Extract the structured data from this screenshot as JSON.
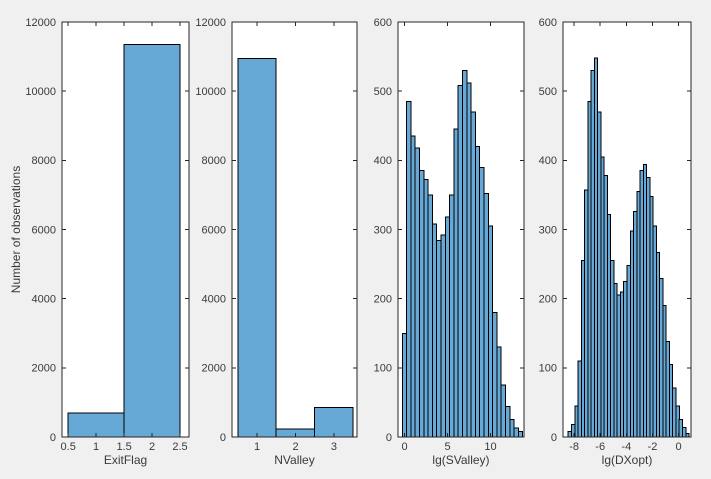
{
  "figure": {
    "background_color": "#f0f0f0",
    "axes_background_color": "#ffffff",
    "axis_color": "#262626",
    "tick_label_color": "#3a3a3a",
    "bar_fill_color": "#66a9d6",
    "bar_edge_color": "#000000",
    "shared_ylabel": "Number of observations"
  },
  "chart_data": [
    {
      "type": "bar",
      "title": "",
      "xlabel": "ExitFlag",
      "ylabel": "Number of observations",
      "xlim": [
        0.39,
        2.66
      ],
      "ylim": [
        0,
        12000
      ],
      "grid": false,
      "legend": null,
      "xticks": [
        0.5,
        1,
        1.5,
        2,
        2.5
      ],
      "xtick_labels": [
        "0.5",
        "1",
        "1.5",
        "2",
        "2.5"
      ],
      "yticks": [
        0,
        2000,
        4000,
        6000,
        8000,
        10000,
        12000
      ],
      "ytick_labels": [
        "0",
        "2000",
        "4000",
        "6000",
        "8000",
        "10000",
        "12000"
      ],
      "bin_start": 0.5,
      "bin_width": 1,
      "counts": [
        700,
        11350
      ]
    },
    {
      "type": "bar",
      "title": "",
      "xlabel": "NValley",
      "ylabel": "",
      "xlim": [
        0.35,
        3.6
      ],
      "ylim": [
        0,
        12000
      ],
      "grid": false,
      "legend": null,
      "xticks": [
        1,
        2,
        3
      ],
      "xtick_labels": [
        "1",
        "2",
        "3"
      ],
      "yticks": [
        0,
        2000,
        4000,
        6000,
        8000,
        10000,
        12000
      ],
      "ytick_labels": [
        "0",
        "2000",
        "4000",
        "6000",
        "8000",
        "10000",
        "12000"
      ],
      "bin_start": 0.5,
      "bin_width": 1,
      "counts": [
        10950,
        230,
        850
      ]
    },
    {
      "type": "bar",
      "title": "",
      "xlabel": "lg(SValley)",
      "ylabel": "",
      "xlim": [
        -0.75,
        13.9
      ],
      "ylim": [
        0,
        600
      ],
      "grid": false,
      "legend": null,
      "xticks": [
        0,
        5,
        10
      ],
      "xtick_labels": [
        "0",
        "5",
        "10"
      ],
      "yticks": [
        0,
        100,
        200,
        300,
        400,
        500,
        600
      ],
      "ytick_labels": [
        "0",
        "100",
        "200",
        "300",
        "400",
        "500",
        "600"
      ],
      "bin_start": -0.25,
      "bin_width": 0.5,
      "counts": [
        150,
        485,
        435,
        418,
        385,
        372,
        350,
        308,
        284,
        292,
        318,
        350,
        445,
        508,
        530,
        512,
        470,
        420,
        390,
        352,
        305,
        180,
        130,
        75,
        44,
        25,
        13,
        8
      ]
    },
    {
      "type": "bar",
      "title": "",
      "xlabel": "lg(DXopt)",
      "ylabel": "",
      "xlim": [
        -8.85,
        0.95
      ],
      "ylim": [
        0,
        600
      ],
      "grid": false,
      "legend": null,
      "xticks": [
        -8,
        -6,
        -4,
        -2,
        0
      ],
      "xtick_labels": [
        "-8",
        "-6",
        "-4",
        "-2",
        "0"
      ],
      "yticks": [
        0,
        100,
        200,
        300,
        400,
        500,
        600
      ],
      "ytick_labels": [
        "0",
        "100",
        "200",
        "300",
        "400",
        "500",
        "600"
      ],
      "bin_start": -8.45,
      "bin_width": 0.25,
      "counts": [
        8,
        18,
        45,
        110,
        255,
        357,
        485,
        530,
        548,
        470,
        405,
        378,
        322,
        255,
        222,
        205,
        210,
        225,
        248,
        298,
        326,
        355,
        385,
        394,
        375,
        348,
        305,
        267,
        229,
        190,
        138,
        105,
        71,
        45,
        25,
        14,
        5
      ]
    }
  ]
}
